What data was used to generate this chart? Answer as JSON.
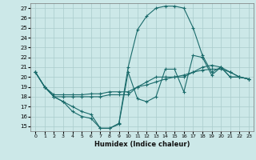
{
  "xlabel": "Humidex (Indice chaleur)",
  "xlim": [
    -0.5,
    23.5
  ],
  "ylim": [
    14.5,
    27.5
  ],
  "xticks": [
    0,
    1,
    2,
    3,
    4,
    5,
    6,
    7,
    8,
    9,
    10,
    11,
    12,
    13,
    14,
    15,
    16,
    17,
    18,
    19,
    20,
    21,
    22,
    23
  ],
  "yticks": [
    15,
    16,
    17,
    18,
    19,
    20,
    21,
    22,
    23,
    24,
    25,
    26,
    27
  ],
  "bg_color": "#cce8e8",
  "grid_color": "#aacccc",
  "line_color": "#1a6b6b",
  "series": [
    {
      "x": [
        0,
        1,
        2,
        3,
        4,
        5,
        6,
        7,
        8,
        9,
        10,
        11,
        12,
        13,
        14,
        15,
        16,
        17,
        18,
        19,
        20,
        21,
        22,
        23
      ],
      "y": [
        20.5,
        19,
        18,
        17.5,
        16.5,
        16,
        15.8,
        14.8,
        14.8,
        15.3,
        21.0,
        24.8,
        26.2,
        27.0,
        27.2,
        27.2,
        27.0,
        25.0,
        22.2,
        20.5,
        21.0,
        20.0,
        20.0,
        19.8
      ]
    },
    {
      "x": [
        0,
        1,
        2,
        3,
        4,
        5,
        6,
        7,
        8,
        9,
        10,
        11,
        12,
        13,
        14,
        15,
        16,
        17,
        18,
        19,
        20,
        21,
        22,
        23
      ],
      "y": [
        20.5,
        19,
        18.2,
        18.2,
        18.2,
        18.2,
        18.3,
        18.3,
        18.5,
        18.5,
        18.5,
        19.0,
        19.2,
        19.5,
        19.8,
        20.0,
        20.2,
        20.5,
        20.7,
        20.8,
        20.8,
        20.5,
        20.0,
        19.8
      ]
    },
    {
      "x": [
        0,
        1,
        2,
        3,
        4,
        5,
        6,
        7,
        8,
        9,
        10,
        11,
        12,
        13,
        14,
        15,
        16,
        17,
        18,
        19,
        20,
        21,
        22,
        23
      ],
      "y": [
        20.5,
        19,
        18.0,
        18.0,
        18.0,
        18.0,
        18.0,
        18.0,
        18.2,
        18.2,
        18.2,
        19.0,
        19.5,
        20.0,
        20.0,
        20.0,
        20.0,
        20.5,
        21.0,
        21.2,
        21.0,
        20.5,
        20.0,
        19.8
      ]
    },
    {
      "x": [
        0,
        1,
        2,
        3,
        4,
        5,
        6,
        7,
        8,
        9,
        10,
        11,
        12,
        13,
        14,
        15,
        16,
        17,
        18,
        19,
        20,
        21,
        22,
        23
      ],
      "y": [
        20.5,
        19,
        18,
        17.5,
        17.0,
        16.5,
        16.2,
        14.8,
        14.8,
        15.2,
        20.5,
        17.8,
        17.5,
        18.0,
        20.8,
        20.8,
        18.5,
        22.2,
        22.0,
        20.2,
        21.0,
        20.0,
        20.0,
        19.8
      ]
    }
  ]
}
